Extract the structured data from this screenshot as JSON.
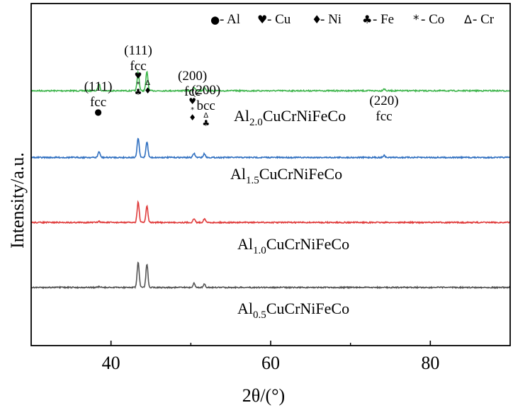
{
  "chart_data": {
    "type": "line",
    "title": "",
    "xlabel": "2θ/(°)",
    "ylabel": "Intensity/a.u.",
    "xlim": [
      30,
      90
    ],
    "xticks": [
      40,
      60,
      80
    ],
    "yticks": [],
    "grid": false,
    "legend": {
      "placement": "top-right",
      "entries": [
        {
          "symbol": "●",
          "label": "- Al"
        },
        {
          "symbol": "♥",
          "label": "- Cu"
        },
        {
          "symbol": "♦",
          "label": "- Ni"
        },
        {
          "symbol": "♣",
          "label": "- Fe"
        },
        {
          "symbol": "*",
          "label": "- Co"
        },
        {
          "symbol": "Δ",
          "label": "- Cr"
        }
      ]
    },
    "series": [
      {
        "label_base": "Al",
        "label_sub": "2.0",
        "label_rest": "CuCrNiFeCo",
        "color": "#3cb44a",
        "offset": 0.255,
        "peaks": [
          [
            38.5,
            0.02
          ],
          [
            43.4,
            0.055
          ],
          [
            44.5,
            0.055
          ],
          [
            50.4,
            0.01
          ],
          [
            51.7,
            0.01
          ],
          [
            74.2,
            0.006
          ]
        ]
      },
      {
        "label_base": "Al",
        "label_sub": "1.5",
        "label_rest": "CuCrNiFeCo",
        "color": "#2f6fc0",
        "offset": 0.45,
        "peaks": [
          [
            38.5,
            0.017
          ],
          [
            43.4,
            0.057
          ],
          [
            44.5,
            0.046
          ],
          [
            50.4,
            0.012
          ],
          [
            51.7,
            0.011
          ],
          [
            74.2,
            0.006
          ]
        ]
      },
      {
        "label_base": "Al",
        "label_sub": "1.0",
        "label_rest": "CuCrNiFeCo",
        "color": "#e03c3c",
        "offset": 0.64,
        "peaks": [
          [
            38.5,
            0.003
          ],
          [
            43.4,
            0.06
          ],
          [
            44.5,
            0.047
          ],
          [
            50.4,
            0.011
          ],
          [
            51.7,
            0.011
          ]
        ]
      },
      {
        "label_base": "Al",
        "label_sub": "0.5",
        "label_rest": "CuCrNiFeCo",
        "color": "#555555",
        "offset": 0.83,
        "peaks": [
          [
            38.5,
            0.002
          ],
          [
            43.4,
            0.074
          ],
          [
            44.5,
            0.067
          ],
          [
            50.4,
            0.012
          ],
          [
            51.7,
            0.009
          ]
        ]
      }
    ],
    "annotations": [
      {
        "x": 38.4,
        "lines": [
          "(111)",
          "fcc",
          "●"
        ]
      },
      {
        "x": 43.4,
        "lines": [
          "(111)",
          "fcc",
          "♥",
          "*",
          "♣"
        ]
      },
      {
        "x": 44.6,
        "lines": [
          "Δ",
          "♦"
        ]
      },
      {
        "x": 50.2,
        "lines": [
          "(200)",
          "fcc",
          "♥",
          "*",
          "♦"
        ]
      },
      {
        "x": 51.9,
        "lines": [
          "(200)",
          "bcc",
          "Δ",
          "♣"
        ]
      },
      {
        "x": 74.2,
        "lines": [
          "(220)",
          "fcc"
        ]
      }
    ]
  }
}
